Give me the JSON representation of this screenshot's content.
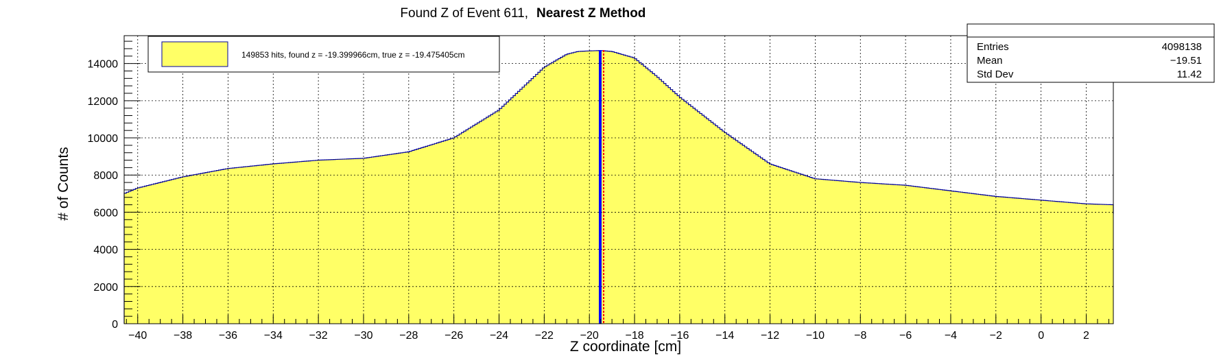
{
  "chart_data": {
    "type": "histogram",
    "title": "Found Z of Event 611,",
    "title_method": "Nearest Z Method",
    "xlabel": "Z coordinate [cm]",
    "ylabel": "# of Counts",
    "xlim": [
      -40.6,
      3.2
    ],
    "ylim": [
      0,
      15500
    ],
    "grid": true,
    "x_ticks": [
      -40,
      -38,
      -36,
      -34,
      -32,
      -30,
      -28,
      -26,
      -24,
      -22,
      -20,
      -18,
      -16,
      -14,
      -12,
      -10,
      -8,
      -6,
      -4,
      -2,
      0,
      2
    ],
    "y_ticks": [
      0,
      2000,
      4000,
      6000,
      8000,
      10000,
      12000,
      14000
    ],
    "fill_color": "#ffff66",
    "line_color": "#000099",
    "profile_x": [
      -40.6,
      -40,
      -38,
      -36,
      -34,
      -32,
      -30,
      -28,
      -26,
      -24,
      -22,
      -21,
      -20.5,
      -20,
      -19.5,
      -19,
      -18,
      -17,
      -16,
      -14,
      -12,
      -10,
      -8,
      -6,
      -4,
      -2,
      0,
      2,
      3.2
    ],
    "profile_y": [
      7000,
      7300,
      7900,
      8350,
      8600,
      8800,
      8900,
      9250,
      10000,
      11500,
      13800,
      14500,
      14650,
      14680,
      14700,
      14650,
      14300,
      13300,
      12200,
      10300,
      8600,
      7800,
      7600,
      7450,
      7150,
      6850,
      6650,
      6450,
      6400
    ],
    "found_z": -19.399966,
    "true_z": -19.475405,
    "found_line_color": "#ff0000",
    "true_line_color": "#0000ff",
    "legend": {
      "position": "top-left",
      "label": "149853 hits, found z = -19.399966cm, true z = -19.475405cm"
    },
    "stats": {
      "position": "top-right",
      "rows": [
        {
          "label": "Entries",
          "value": "4098138"
        },
        {
          "label": "Mean",
          "value": "−19.51"
        },
        {
          "label": "Std Dev",
          "value": "11.42"
        }
      ]
    }
  }
}
